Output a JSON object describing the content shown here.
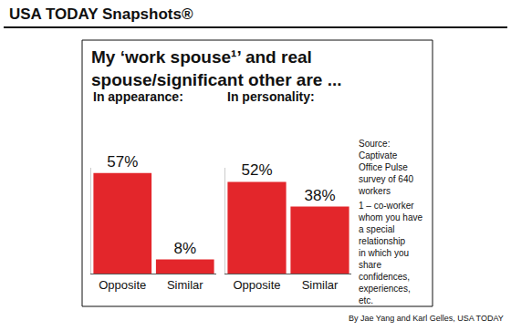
{
  "header": "USA TODAY Snapshots®",
  "title": "My ‘work spouse¹’ and real spouse/significant other are ...",
  "source": "Source: Captivate Office Pulse survey of 640 workers",
  "footnote": "1 – co-worker whom you have a special relationship in which you share confidences, experiences, etc.",
  "byline": "By Jae Yang and Karl Gelles, USA TODAY",
  "chart_data": [
    {
      "type": "bar",
      "title": "In appearance:",
      "categories": [
        "Opposite",
        "Similar"
      ],
      "values": [
        57,
        8
      ],
      "value_labels": [
        "57%",
        "8%"
      ],
      "color": "#e3262b",
      "ylim": [
        0,
        60
      ],
      "data_labels": true,
      "tick_labels": "x",
      "grid": false
    },
    {
      "type": "bar",
      "title": "In personality:",
      "categories": [
        "Opposite",
        "Similar"
      ],
      "values": [
        52,
        38
      ],
      "value_labels": [
        "52%",
        "38%"
      ],
      "color": "#e3262b",
      "ylim": [
        0,
        60
      ],
      "data_labels": true,
      "tick_labels": "x",
      "grid": false
    }
  ]
}
